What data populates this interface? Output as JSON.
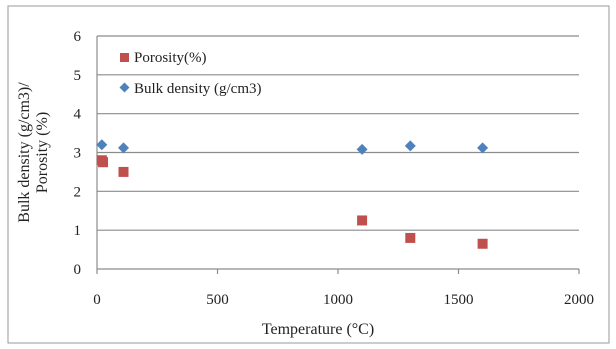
{
  "chart_data": {
    "type": "scatter",
    "title": "",
    "xlabel": "Temperature (°C)",
    "ylabel_lines": [
      "Bulk density (g/cm3)/",
      "Porosity (%)"
    ],
    "xlim": [
      0,
      2000
    ],
    "ylim": [
      0,
      6
    ],
    "x_ticks": [
      0,
      500,
      1000,
      1500,
      2000
    ],
    "y_ticks": [
      0,
      1,
      2,
      3,
      4,
      5,
      6
    ],
    "grid": "horizontal",
    "legend_position": "top-left",
    "series": [
      {
        "name": "Porosity(%)",
        "marker": "square",
        "color": "#c0504d",
        "points": [
          {
            "x": 20,
            "y": 2.8
          },
          {
            "x": 25,
            "y": 2.75
          },
          {
            "x": 110,
            "y": 2.5
          },
          {
            "x": 1100,
            "y": 1.25
          },
          {
            "x": 1300,
            "y": 0.8
          },
          {
            "x": 1600,
            "y": 0.65
          }
        ]
      },
      {
        "name": "Bulk density (g/cm3)",
        "marker": "diamond",
        "color": "#4f81bd",
        "points": [
          {
            "x": 20,
            "y": 3.2
          },
          {
            "x": 110,
            "y": 3.12
          },
          {
            "x": 1100,
            "y": 3.08
          },
          {
            "x": 1300,
            "y": 3.17
          },
          {
            "x": 1600,
            "y": 3.12
          }
        ]
      }
    ]
  }
}
